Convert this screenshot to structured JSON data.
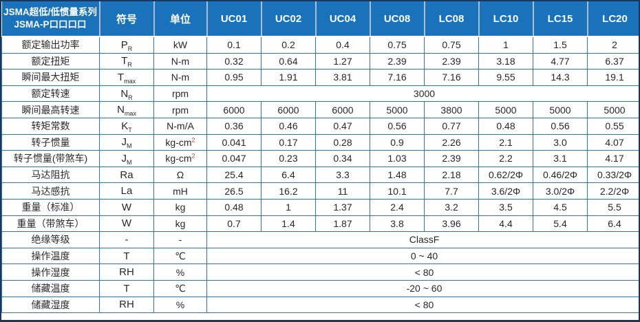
{
  "table": {
    "title_line1": "JSMA超低/低惯量系列",
    "title_line2": "JSMA-P口口口口",
    "col_symbol": "符号",
    "col_unit": "单位",
    "models": [
      "UC01",
      "UC02",
      "UC04",
      "UC08",
      "LC08",
      "LC10",
      "LC15",
      "LC20"
    ],
    "rows": [
      {
        "label": "额定输出功率",
        "symbol": "P",
        "sub": "R",
        "unit": "kW",
        "values": [
          "0.1",
          "0.2",
          "0.4",
          "0.75",
          "0.75",
          "1",
          "1.5",
          "2"
        ]
      },
      {
        "label": "额定扭矩",
        "symbol": "T",
        "sub": "R",
        "unit": "N-m",
        "values": [
          "0.32",
          "0.64",
          "1.27",
          "2.39",
          "2.39",
          "3.18",
          "4.77",
          "6.37"
        ]
      },
      {
        "label": "瞬间最大扭矩",
        "symbol": "T",
        "sub": "max",
        "unit": "N-m",
        "values": [
          "0.95",
          "1.91",
          "3.81",
          "7.16",
          "7.16",
          "9.55",
          "14.3",
          "19.1"
        ]
      },
      {
        "label": "额定转速",
        "symbol": "N",
        "sub": "R",
        "unit": "rpm",
        "span": "3000"
      },
      {
        "label": "瞬间最高转速",
        "symbol": "N",
        "sub": "max",
        "unit": "rpm",
        "values": [
          "6000",
          "6000",
          "6000",
          "5000",
          "3800",
          "5000",
          "5000",
          "5000"
        ]
      },
      {
        "label": "转矩常数",
        "symbol": "K",
        "sub": "T",
        "unit": "N-m/A",
        "values": [
          "0.36",
          "0.46",
          "0.47",
          "0.56",
          "0.77",
          "0.48",
          "0.56",
          "0.55"
        ]
      },
      {
        "label": "转子惯量",
        "symbol": "J",
        "sub": "M",
        "unit": "kg-cm",
        "unit_sup": "2",
        "values": [
          "0.041",
          "0.17",
          "0.28",
          "0.9",
          "2.26",
          "2.1",
          "3.0",
          "4.07"
        ]
      },
      {
        "label": "转子惯量(带煞车)",
        "symbol": "J",
        "sub": "M",
        "unit": "kg-cm",
        "unit_sup": "2",
        "values": [
          "0.047",
          "0.23",
          "0.34",
          "1.03",
          "2.39",
          "2.2",
          "3.1",
          "4.17"
        ]
      },
      {
        "label": "马达阻抗",
        "symbol": "Ra",
        "unit": "Ω",
        "values": [
          "25.4",
          "6.4",
          "3.3",
          "1.48",
          "2.18",
          "0.62/2Φ",
          "0.46/2Φ",
          "0.33/2Φ"
        ]
      },
      {
        "label": "马达感抗",
        "symbol": "La",
        "unit": "mH",
        "values": [
          "26.5",
          "16.2",
          "11",
          "10.1",
          "7.7",
          "3.6/2Φ",
          "3.0/2Φ",
          "2.2/2Φ"
        ]
      },
      {
        "label": "重量（标准）",
        "symbol": "W",
        "unit": "kg",
        "values": [
          "0.48",
          "1",
          "1.37",
          "2.4",
          "3.2",
          "3.5",
          "4.5",
          "5.5"
        ]
      },
      {
        "label": "重量（带煞车）",
        "symbol": "W",
        "unit": "kg",
        "values": [
          "0.7",
          "1.4",
          "1.87",
          "3.8",
          "3.96",
          "4.4",
          "5.4",
          "6.4"
        ]
      },
      {
        "label": "绝缘等级",
        "symbol": "-",
        "unit": "-",
        "span": "ClassF"
      },
      {
        "label": "操作温度",
        "symbol": "T",
        "unit": "℃",
        "span": "0 ~ 40"
      },
      {
        "label": "操作湿度",
        "symbol": "RH",
        "unit": "%",
        "span": "< 80"
      },
      {
        "label": "储藏温度",
        "symbol": "T",
        "unit": "℃",
        "span": "-20 ~ 60"
      },
      {
        "label": "储藏湿度",
        "symbol": "RH",
        "unit": "%",
        "span": "< 80"
      }
    ],
    "colors": {
      "header_bg": "#1a72ba",
      "header_text": "#ffffff",
      "grid_line": "#2e74b5",
      "outer_border": "#17375e",
      "header_separator": "#a9bdd6",
      "body_text": "#26262c",
      "unit_superscript": "#b0492f"
    }
  }
}
